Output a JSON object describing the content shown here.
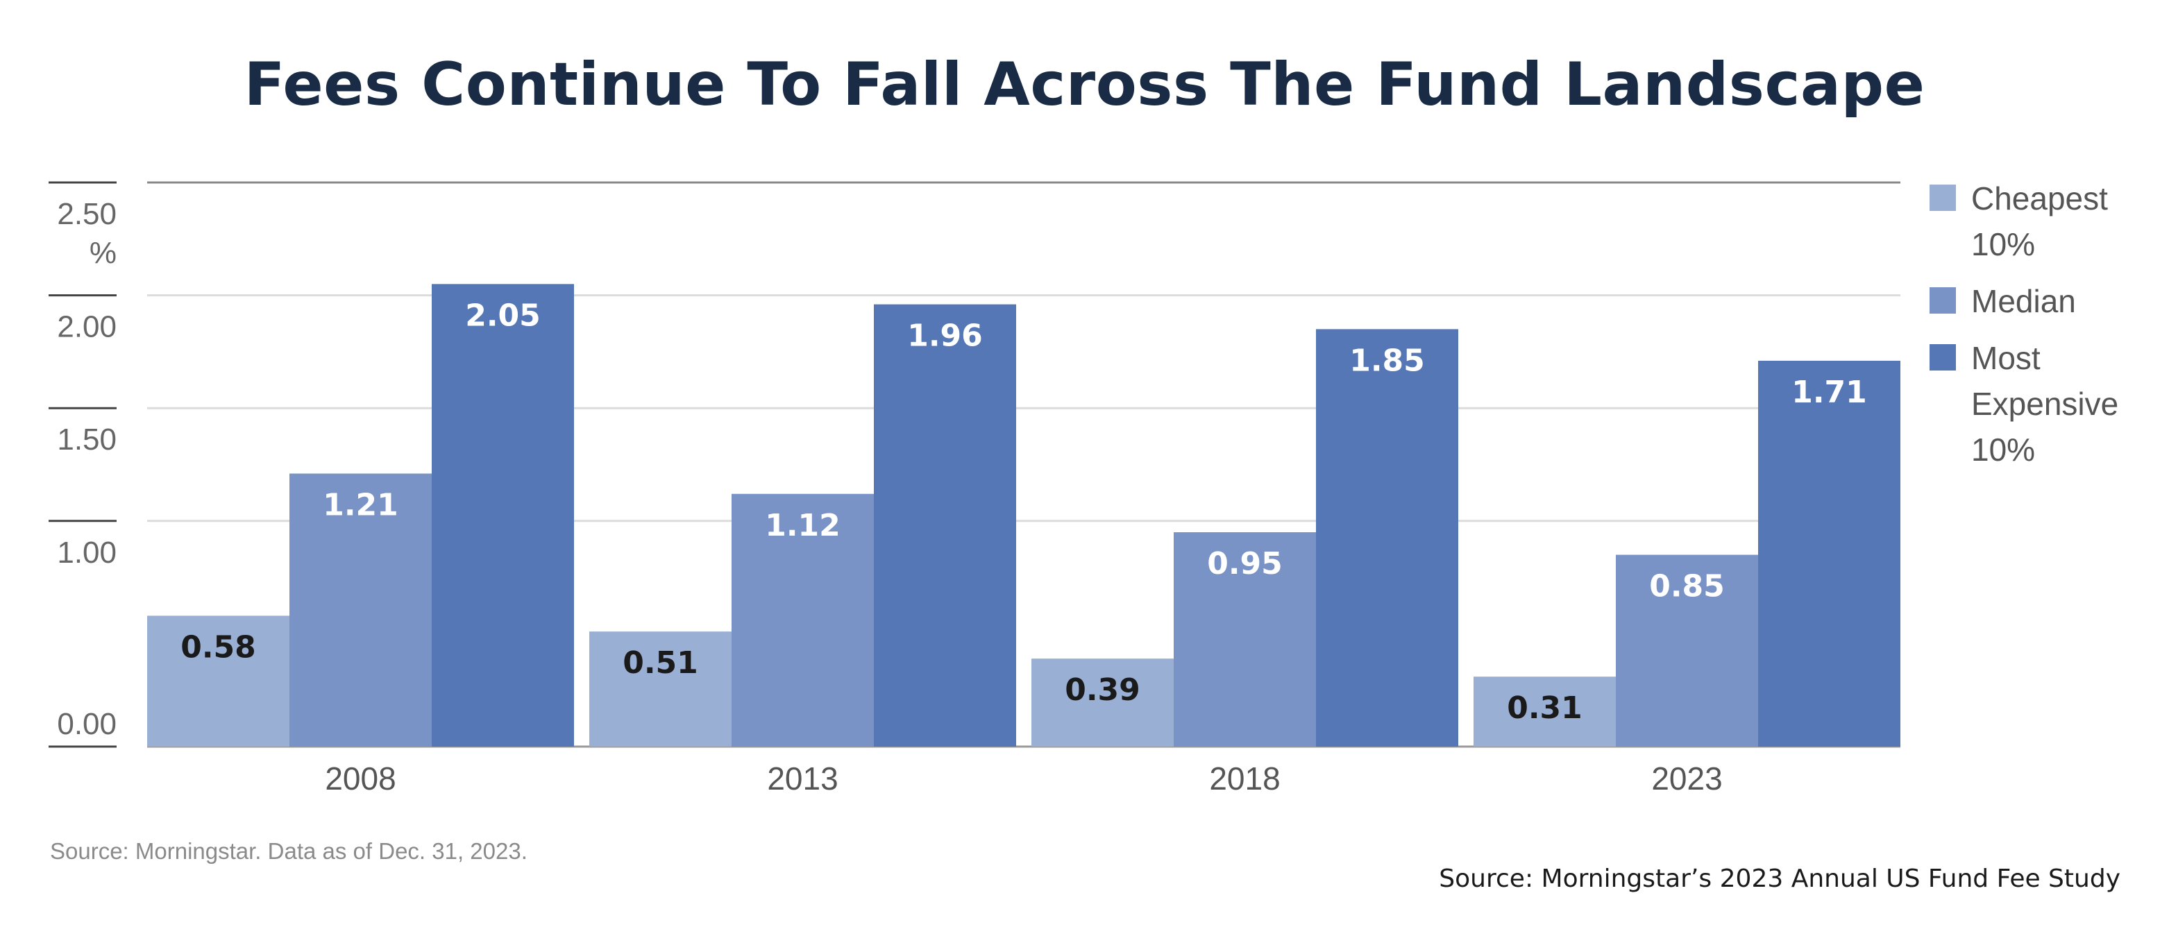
{
  "chart_data": {
    "type": "bar",
    "title": "Fees Continue To Fall Across The Fund Landscape",
    "categories": [
      "2008",
      "2013",
      "2018",
      "2023"
    ],
    "series": [
      {
        "name": "Cheapest 10%",
        "legend_lines": [
          "Cheapest",
          "10%"
        ],
        "values": [
          0.58,
          0.51,
          0.39,
          0.31
        ],
        "color": "#9aafd4",
        "label_color": "#1a1a1a"
      },
      {
        "name": "Median",
        "legend_lines": [
          "Median"
        ],
        "values": [
          1.21,
          1.12,
          0.95,
          0.85
        ],
        "color": "#7993c6",
        "label_color": "#ffffff"
      },
      {
        "name": "Most Expensive 10%",
        "legend_lines": [
          "Most",
          "Expensive",
          "10%"
        ],
        "values": [
          2.05,
          1.96,
          1.85,
          1.71
        ],
        "color": "#5577b5",
        "label_color": "#ffffff"
      }
    ],
    "data_labels": [
      [
        "0.58",
        "0.51",
        "0.39",
        "0.31"
      ],
      [
        "1.21",
        "1.12",
        "0.95",
        "0.85"
      ],
      [
        "2.05",
        "1.96",
        "1.85",
        "1.71"
      ]
    ],
    "ylim": [
      0,
      2.5
    ],
    "yticks": [
      {
        "value": 2.5,
        "lines": [
          "2.50",
          "%"
        ]
      },
      {
        "value": 2.0,
        "lines": [
          "2.00"
        ]
      },
      {
        "value": 1.5,
        "lines": [
          "1.50"
        ]
      },
      {
        "value": 1.0,
        "lines": [
          "1.00"
        ]
      },
      {
        "value": 0.0,
        "lines": [
          "0.00"
        ]
      }
    ],
    "gridlines": [
      2.0,
      1.5,
      1.0
    ],
    "grid": true,
    "legend_position": "right",
    "note": "Source: Morningstar. Data as of Dec. 31, 2023.",
    "source": "Source: Morningstar’s 2023 Annual US Fund Fee Study"
  }
}
